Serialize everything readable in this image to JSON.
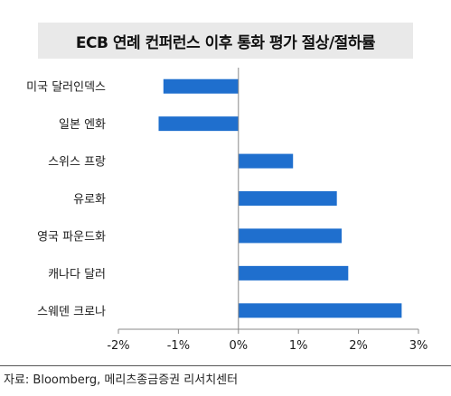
{
  "chart_data": {
    "type": "bar",
    "orientation": "horizontal",
    "title": "ECB 연례 컨퍼런스 이후 통화 평가 절상/절하률",
    "categories": [
      "미국 달러인덱스",
      "일본 엔화",
      "스위스 프랑",
      "유로화",
      "영국 파운드화",
      "캐나다 달러",
      "스웨덴 크로나"
    ],
    "values": [
      -1.25,
      -1.33,
      0.91,
      1.64,
      1.72,
      1.83,
      2.72
    ],
    "xlim": [
      -2,
      3
    ],
    "xticks": [
      -2,
      -1,
      0,
      1,
      2,
      3
    ],
    "tick_labels": [
      "-2%",
      "-1%",
      "0%",
      "1%",
      "2%",
      "3%"
    ],
    "bar_color": "#1f6fce",
    "grid": false
  },
  "source": "자료: Bloomberg, 메리츠종금증권 리서치센터"
}
